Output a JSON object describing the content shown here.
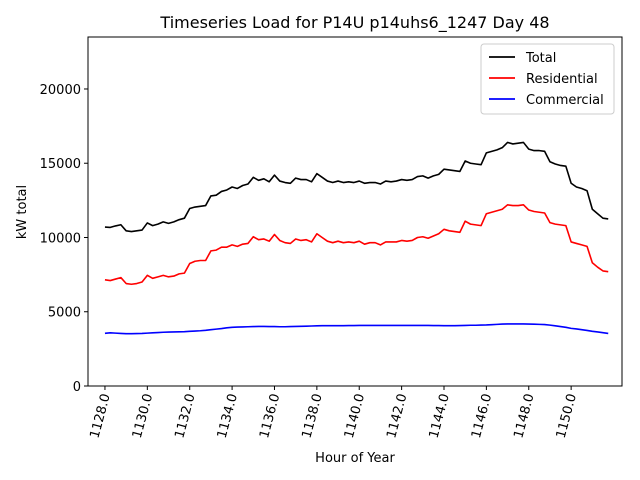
{
  "chart_data": {
    "type": "line",
    "title": "Timeseries Load for P14U p14uhs6_1247  Day 48",
    "xlabel": "Hour of Year",
    "ylabel": "kW total",
    "xlim": [
      1127.2,
      1152.4
    ],
    "ylim": [
      0,
      23500
    ],
    "xticks": [
      1128,
      1130,
      1132,
      1134,
      1136,
      1138,
      1140,
      1142,
      1144,
      1146,
      1148,
      1150
    ],
    "xtick_labels": [
      "1128.0",
      "1130.0",
      "1132.0",
      "1134.0",
      "1136.0",
      "1138.0",
      "1140.0",
      "1142.0",
      "1144.0",
      "1146.0",
      "1148.0",
      "1150.0"
    ],
    "yticks": [
      0,
      5000,
      10000,
      15000,
      20000
    ],
    "ytick_labels": [
      "0",
      "5000",
      "10000",
      "15000",
      "20000"
    ],
    "legend_position": "top-right",
    "x_start": 1128,
    "x_step": 0.25,
    "series": [
      {
        "name": "Total",
        "color": "#000000",
        "values": [
          10700,
          10680,
          10780,
          10860,
          10450,
          10400,
          10450,
          10500,
          10980,
          10800,
          10900,
          11050,
          10950,
          11050,
          11200,
          11300,
          11950,
          12050,
          12100,
          12150,
          12800,
          12850,
          13100,
          13200,
          13400,
          13300,
          13500,
          13600,
          14050,
          13850,
          13950,
          13750,
          14200,
          13800,
          13700,
          13650,
          14000,
          13900,
          13900,
          13750,
          14300,
          14050,
          13800,
          13700,
          13800,
          13700,
          13750,
          13700,
          13800,
          13650,
          13700,
          13700,
          13600,
          13800,
          13750,
          13800,
          13900,
          13850,
          13900,
          14100,
          14150,
          14000,
          14150,
          14250,
          14600,
          14550,
          14500,
          14450,
          15150,
          15000,
          14950,
          14900,
          15700,
          15800,
          15900,
          16050,
          16400,
          16300,
          16350,
          16400,
          15950,
          15850,
          15850,
          15800,
          15100,
          14950,
          14850,
          14800,
          13650,
          13400,
          13300,
          13150,
          11900,
          11600,
          11300,
          11250
        ]
      },
      {
        "name": "Residential",
        "color": "#ff0000",
        "values": [
          7150,
          7100,
          7200,
          7300,
          6900,
          6850,
          6900,
          7000,
          7450,
          7250,
          7350,
          7450,
          7350,
          7400,
          7550,
          7600,
          8250,
          8400,
          8450,
          8450,
          9100,
          9150,
          9350,
          9350,
          9500,
          9400,
          9550,
          9600,
          10050,
          9850,
          9900,
          9750,
          10200,
          9800,
          9650,
          9600,
          9900,
          9800,
          9850,
          9700,
          10250,
          10000,
          9750,
          9650,
          9750,
          9650,
          9700,
          9650,
          9750,
          9550,
          9650,
          9650,
          9500,
          9700,
          9700,
          9700,
          9800,
          9750,
          9800,
          10000,
          10050,
          9950,
          10100,
          10250,
          10550,
          10450,
          10400,
          10350,
          11100,
          10900,
          10850,
          10800,
          11600,
          11700,
          11800,
          11900,
          12200,
          12150,
          12150,
          12200,
          11850,
          11750,
          11700,
          11650,
          11000,
          10900,
          10850,
          10800,
          9700,
          9600,
          9500,
          9400,
          8300,
          8000,
          7750,
          7700
        ]
      },
      {
        "name": "Commercial",
        "color": "#0000ff",
        "values": [
          3550,
          3580,
          3560,
          3540,
          3520,
          3520,
          3530,
          3540,
          3560,
          3580,
          3600,
          3620,
          3630,
          3640,
          3650,
          3660,
          3680,
          3700,
          3720,
          3750,
          3790,
          3830,
          3870,
          3920,
          3950,
          3970,
          3980,
          3990,
          4000,
          4010,
          4010,
          4000,
          4000,
          3990,
          3990,
          4000,
          4010,
          4020,
          4030,
          4040,
          4050,
          4060,
          4060,
          4060,
          4060,
          4060,
          4070,
          4070,
          4080,
          4080,
          4080,
          4080,
          4080,
          4080,
          4080,
          4080,
          4080,
          4080,
          4080,
          4080,
          4080,
          4080,
          4070,
          4070,
          4060,
          4060,
          4060,
          4070,
          4080,
          4090,
          4090,
          4100,
          4110,
          4130,
          4150,
          4170,
          4180,
          4180,
          4180,
          4180,
          4170,
          4160,
          4150,
          4140,
          4100,
          4050,
          4000,
          3950,
          3880,
          3840,
          3790,
          3740,
          3680,
          3640,
          3590,
          3540
        ]
      }
    ]
  }
}
